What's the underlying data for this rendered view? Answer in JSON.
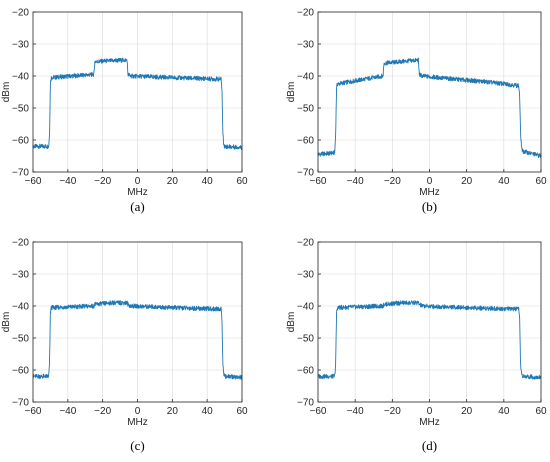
{
  "style": {
    "line_color": "#1f77b4",
    "grid_color": "#d9d9d9",
    "axis_color": "#262626"
  },
  "chart_data": [
    {
      "type": "line",
      "caption": "(a)",
      "xlabel": "MHz",
      "ylabel": "dBm",
      "xlim": [
        -60,
        60
      ],
      "ylim": [
        -70,
        -20
      ],
      "xticks": [
        -60,
        -40,
        -20,
        0,
        20,
        40,
        60
      ],
      "yticks": [
        -20,
        -30,
        -40,
        -50,
        -60,
        -70
      ],
      "grid": true,
      "series": [
        {
          "x": [
            -60,
            -51,
            -50.5,
            -50,
            -49.5,
            -25,
            -24.5,
            -6,
            -5.5,
            -4,
            20,
            48,
            48.5,
            49,
            49.5,
            50,
            60
          ],
          "y": [
            -62,
            -62,
            -58,
            -42,
            -40.5,
            -39.5,
            -35.5,
            -35,
            -39.5,
            -40,
            -40.5,
            -41,
            -44,
            -58,
            -61,
            -62,
            -62.3
          ]
        }
      ]
    },
    {
      "type": "line",
      "caption": "(b)",
      "xlabel": "MHz",
      "ylabel": "dBm",
      "xlim": [
        -60,
        60
      ],
      "ylim": [
        -70,
        -20
      ],
      "xticks": [
        -60,
        -40,
        -20,
        0,
        20,
        40,
        60
      ],
      "yticks": [
        -20,
        -30,
        -40,
        -50,
        -60,
        -70
      ],
      "grid": true,
      "series": [
        {
          "x": [
            -60,
            -51,
            -50.5,
            -50,
            -49.5,
            -40,
            -25,
            -24.5,
            -15,
            -6,
            -5.5,
            -4,
            10,
            30,
            48,
            48.5,
            49,
            49.5,
            50,
            60
          ],
          "y": [
            -64.5,
            -64,
            -58,
            -43.5,
            -42.5,
            -41.5,
            -40,
            -36,
            -35.5,
            -35,
            -39.5,
            -40,
            -40.8,
            -41.8,
            -43,
            -46,
            -58,
            -62,
            -63.5,
            -65
          ]
        }
      ]
    },
    {
      "type": "line",
      "caption": "(c)",
      "xlabel": "MHz",
      "ylabel": "dBm",
      "xlim": [
        -60,
        60
      ],
      "ylim": [
        -70,
        -20
      ],
      "xticks": [
        -60,
        -40,
        -20,
        0,
        20,
        40,
        60
      ],
      "yticks": [
        -20,
        -30,
        -40,
        -50,
        -60,
        -70
      ],
      "grid": true,
      "series": [
        {
          "x": [
            -60,
            -51,
            -50.5,
            -50,
            -49.5,
            -25,
            -24.5,
            -15,
            -6,
            -5.5,
            -4,
            20,
            48,
            48.5,
            49,
            49.5,
            50,
            60
          ],
          "y": [
            -62,
            -62,
            -58,
            -42,
            -40.5,
            -40,
            -39.5,
            -39,
            -39,
            -39.5,
            -40,
            -40.5,
            -41,
            -44,
            -58,
            -61,
            -62,
            -62.3
          ]
        }
      ]
    },
    {
      "type": "line",
      "caption": "(d)",
      "xlabel": "MHz",
      "ylabel": "dBm",
      "xlim": [
        -60,
        60
      ],
      "ylim": [
        -70,
        -20
      ],
      "xticks": [
        -60,
        -40,
        -20,
        0,
        20,
        40,
        60
      ],
      "yticks": [
        -20,
        -30,
        -40,
        -50,
        -60,
        -70
      ],
      "grid": true,
      "series": [
        {
          "x": [
            -60,
            -51,
            -50.5,
            -50,
            -49.5,
            -25,
            -24.5,
            -15,
            -6,
            -5.5,
            -4,
            20,
            48,
            48.5,
            49,
            49.5,
            50,
            60
          ],
          "y": [
            -62,
            -62,
            -58,
            -42,
            -40.5,
            -40,
            -39.5,
            -39,
            -39,
            -39.5,
            -40,
            -40.5,
            -41,
            -44,
            -58,
            -61,
            -62,
            -62.3
          ]
        }
      ]
    }
  ]
}
